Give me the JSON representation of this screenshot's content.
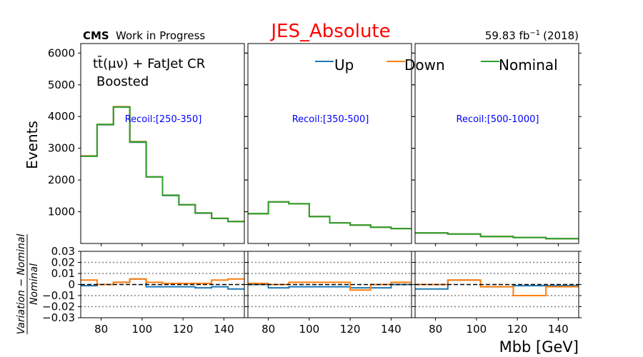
{
  "header": {
    "cms_label": "CMS",
    "status_label": "Work in Progress",
    "title": "JES_Absolute",
    "lumi_label": "59.83 fb",
    "lumi_exponent": "−1",
    "year_label": "(2018)",
    "title_color": "#ff0000"
  },
  "region": {
    "channel_label": "tt̄(μν) + FatJet CR",
    "category_label": "Boosted"
  },
  "legend": {
    "items": [
      {
        "label": "Up",
        "color": "#1f77b4"
      },
      {
        "label": "Down",
        "color": "#ff7f0e"
      },
      {
        "label": "Nominal",
        "color": "#2ca02c"
      }
    ]
  },
  "axes": {
    "ylabel_top": "Events",
    "ylabel_ratio": "Variation − Nominal / Nominal",
    "ylabel_ratio_num": "Variation − Nominal",
    "ylabel_ratio_den": "Nominal",
    "xlabel": "Mbb [GeV]"
  },
  "chart_data": {
    "type": "line",
    "style": "step",
    "x_range": [
      70,
      150
    ],
    "top_ylim": [
      0,
      6300
    ],
    "top_yticks": [
      1000,
      2000,
      3000,
      4000,
      5000,
      6000
    ],
    "ratio_ylim": [
      -0.03,
      0.03
    ],
    "ratio_yticks": [
      0.03,
      0.02,
      0.01,
      0,
      -0.01,
      -0.02,
      -0.03
    ],
    "ratio_ytick_labels": [
      "0.03",
      "0.02",
      "0.01",
      "0",
      "−0.01",
      "−0.02",
      "−0.03"
    ],
    "ratio_gridlines": [
      0.02,
      0.01,
      -0.01,
      -0.02
    ],
    "xticks": [
      80,
      100,
      120,
      140
    ],
    "panels": [
      {
        "recoil_label": "Recoil:[250-350]",
        "edges": [
          70,
          78,
          86,
          94,
          102,
          110,
          118,
          126,
          134,
          142,
          150
        ],
        "nominal": [
          2750,
          3750,
          4300,
          3200,
          2100,
          1520,
          1220,
          960,
          790,
          690
        ],
        "up": [
          2750,
          3740,
          4300,
          3190,
          2100,
          1510,
          1220,
          955,
          790,
          690
        ],
        "down": [
          2760,
          3750,
          4310,
          3210,
          2100,
          1520,
          1220,
          960,
          795,
          695
        ],
        "ratio_up": [
          -0.001,
          0.0,
          0.002,
          0.005,
          -0.002,
          -0.002,
          -0.002,
          -0.003,
          -0.002,
          -0.004
        ],
        "ratio_down": [
          0.004,
          0.0,
          0.002,
          0.005,
          0.002,
          0.001,
          0.001,
          0.001,
          0.004,
          0.005
        ]
      },
      {
        "recoil_label": "Recoil:[350-500]",
        "edges": [
          70,
          80,
          90,
          100,
          110,
          120,
          130,
          140,
          150
        ],
        "nominal": [
          940,
          1310,
          1250,
          850,
          650,
          580,
          510,
          470
        ],
        "up": [
          940,
          1310,
          1250,
          850,
          650,
          580,
          510,
          470
        ],
        "down": [
          940,
          1310,
          1250,
          850,
          650,
          580,
          510,
          470
        ],
        "ratio_up": [
          0.0,
          -0.003,
          -0.002,
          -0.002,
          -0.002,
          -0.003,
          -0.003,
          0.0
        ],
        "ratio_down": [
          0.001,
          0.0,
          0.002,
          0.002,
          0.002,
          -0.005,
          0.0,
          0.002
        ]
      },
      {
        "recoil_label": "Recoil:[500-1000]",
        "edges": [
          70,
          86,
          102,
          118,
          134,
          150
        ],
        "nominal": [
          330,
          300,
          220,
          190,
          150
        ],
        "up": [
          330,
          300,
          220,
          190,
          150
        ],
        "down": [
          330,
          300,
          220,
          190,
          150
        ],
        "ratio_up": [
          -0.004,
          0.004,
          -0.002,
          -0.001,
          -0.001
        ],
        "ratio_down": [
          0.0,
          0.004,
          -0.002,
          -0.01,
          -0.002
        ]
      }
    ]
  }
}
